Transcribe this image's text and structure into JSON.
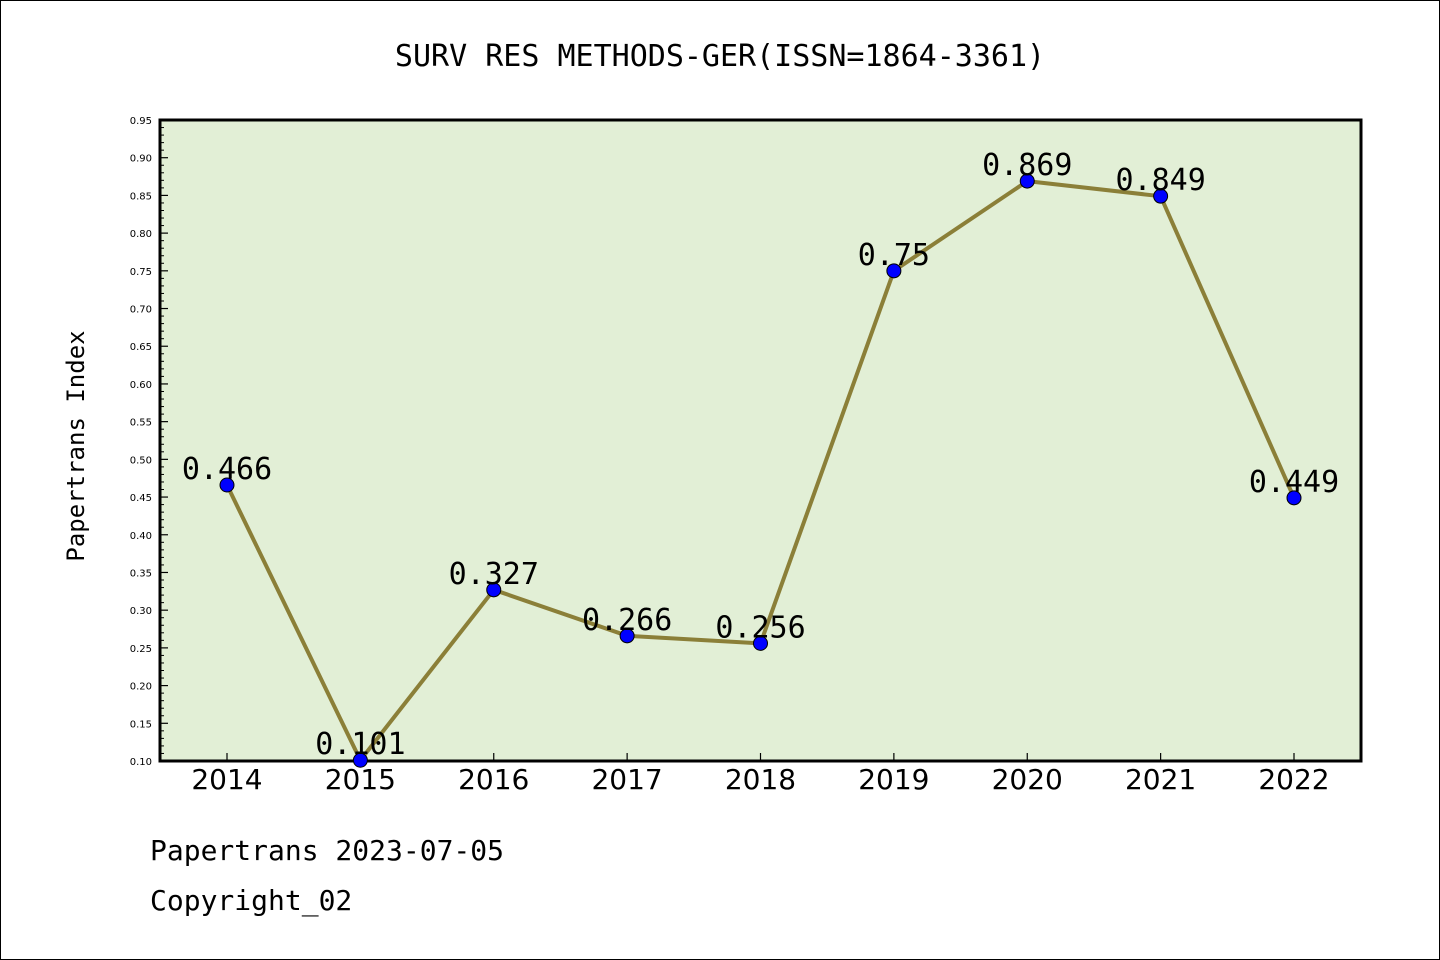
{
  "chart_data": {
    "type": "line",
    "title": "SURV RES METHODS-GER(ISSN=1864-3361)",
    "xlabel": "",
    "ylabel": "Papertrans Index",
    "categories": [
      "2014",
      "2015",
      "2016",
      "2017",
      "2018",
      "2019",
      "2020",
      "2021",
      "2022"
    ],
    "values": [
      0.466,
      0.101,
      0.327,
      0.266,
      0.256,
      0.75,
      0.869,
      0.849,
      0.449
    ],
    "data_labels": [
      "0.466",
      "0.101",
      "0.327",
      "0.266",
      "0.256",
      "0.75",
      "0.869",
      "0.849",
      "0.449"
    ],
    "ylim": [
      0.1,
      0.95
    ],
    "yticks": [
      "0.10",
      "0.15",
      "0.20",
      "0.25",
      "0.30",
      "0.35",
      "0.40",
      "0.45",
      "0.50",
      "0.55",
      "0.60",
      "0.65",
      "0.70",
      "0.75",
      "0.80",
      "0.85",
      "0.90",
      "0.95"
    ],
    "grid": false,
    "colors": {
      "plot_background": "#e2efd6",
      "line": "#8b7f38",
      "marker": "#0000ff"
    }
  },
  "footer": {
    "line1": "Papertrans 2023-07-05",
    "line2": "Copyright_02"
  }
}
